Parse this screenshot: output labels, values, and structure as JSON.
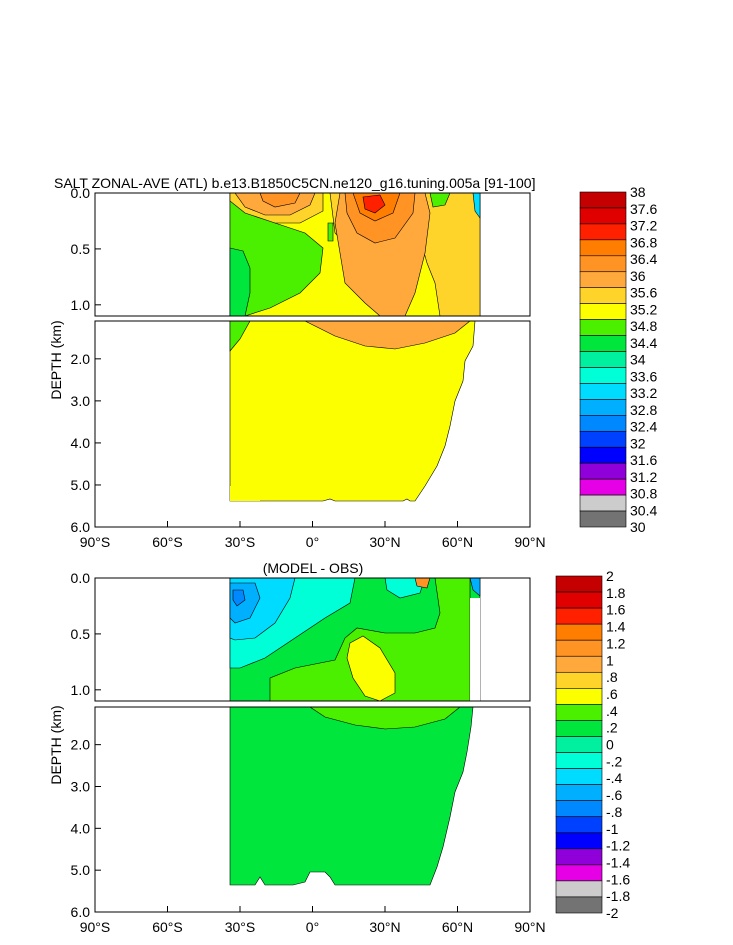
{
  "chart_data": [
    {
      "type": "heatmap",
      "title": "SALT ZONAL-AVE (ATL) b.e13.B1850C5CN.ne120_g16.tuning.005a [91-100]",
      "ylabel": "DEPTH (km)",
      "xlabel": "",
      "x_ticks": [
        "90°S",
        "60°S",
        "30°S",
        "0°",
        "30°N",
        "60°N",
        "90°N"
      ],
      "x_range": [
        -90,
        90
      ],
      "y_upper_ticks": [
        "0.0",
        "0.5",
        "1.0"
      ],
      "y_lower_ticks": [
        "2.0",
        "3.0",
        "4.0",
        "5.0",
        "6.0"
      ],
      "y_upper_range_km": [
        0,
        1.1
      ],
      "y_lower_range_km": [
        1.1,
        6.0
      ],
      "colorbar_labels": [
        "38",
        "37.6",
        "37.2",
        "36.8",
        "36.4",
        "36",
        "35.6",
        "35.2",
        "34.8",
        "34.4",
        "34",
        "33.6",
        "33.2",
        "32.8",
        "32.4",
        "32",
        "31.6",
        "31.2",
        "30.8",
        "30.4",
        "30"
      ],
      "colorbar_colors": [
        "#c50000",
        "#e00000",
        "#ff2000",
        "#ff7d00",
        "#ff9424",
        "#ffa83c",
        "#ffd42a",
        "#fbff00",
        "#4af000",
        "#00e63c",
        "#00f0a0",
        "#00ffd6",
        "#00dcff",
        "#00b0ff",
        "#0088ff",
        "#0040ff",
        "#0000ff",
        "#9000d8",
        "#e600e6",
        "#cccccc",
        "#737373"
      ],
      "regions": [
        {
          "name": "deep-ocean",
          "color": "#fbff00",
          "value_range": [
            34.8,
            35.2
          ]
        },
        {
          "name": "southern-intermediate-water",
          "color": "#4af000",
          "value_range": [
            34.4,
            34.8
          ]
        },
        {
          "name": "aaiw-core",
          "color": "#00e63c",
          "value_range": [
            34.0,
            34.4
          ]
        },
        {
          "name": "subtropical-north-max",
          "color": "#ffa83c",
          "value_range": [
            35.6,
            36.0
          ]
        },
        {
          "name": "surface-max-north",
          "color": "#ff2000",
          "value_range": [
            37.2,
            37.6
          ]
        },
        {
          "name": "surface-south-max",
          "color": "#ff9424",
          "value_range": [
            36.0,
            36.4
          ]
        }
      ]
    },
    {
      "type": "heatmap",
      "title": "(MODEL - OBS)",
      "ylabel": "DEPTH (km)",
      "xlabel": "",
      "x_ticks": [
        "90°S",
        "60°S",
        "30°S",
        "0°",
        "30°N",
        "60°N",
        "90°N"
      ],
      "x_range": [
        -90,
        90
      ],
      "y_upper_ticks": [
        "0.0",
        "0.5",
        "1.0"
      ],
      "y_lower_ticks": [
        "2.0",
        "3.0",
        "4.0",
        "5.0",
        "6.0"
      ],
      "y_upper_range_km": [
        0,
        1.1
      ],
      "y_lower_range_km": [
        1.1,
        6.0
      ],
      "colorbar_labels": [
        "2",
        "1.8",
        "1.6",
        "1.4",
        "1.2",
        "1",
        ".8",
        ".6",
        ".4",
        ".2",
        "0",
        "-.2",
        "-.4",
        "-.6",
        "-.8",
        "-1",
        "-1.2",
        "-1.4",
        "-1.6",
        "-1.8",
        "-2"
      ],
      "colorbar_colors": [
        "#c50000",
        "#e00000",
        "#ff2000",
        "#ff7d00",
        "#ff9424",
        "#ffa83c",
        "#ffd42a",
        "#fbff00",
        "#4af000",
        "#00e63c",
        "#00f0a0",
        "#00ffd6",
        "#00dcff",
        "#00b0ff",
        "#0088ff",
        "#0040ff",
        "#0000ff",
        "#9000d8",
        "#e600e6",
        "#cccccc",
        "#737373"
      ],
      "regions": [
        {
          "name": "deep-bias",
          "color": "#00e63c",
          "value_range": [
            0.0,
            0.2
          ]
        },
        {
          "name": "intermediate-bias",
          "color": "#4af000",
          "value_range": [
            0.2,
            0.4
          ]
        },
        {
          "name": "subtropical-bias-max",
          "color": "#fbff00",
          "value_range": [
            0.4,
            0.6
          ]
        },
        {
          "name": "southern-surface-fresh-bias",
          "color": "#00dcff",
          "value_range": [
            -0.6,
            -0.2
          ]
        },
        {
          "name": "southern-surface-fresh-core",
          "color": "#00b0ff",
          "value_range": [
            -1.0,
            -0.6
          ]
        }
      ]
    }
  ]
}
